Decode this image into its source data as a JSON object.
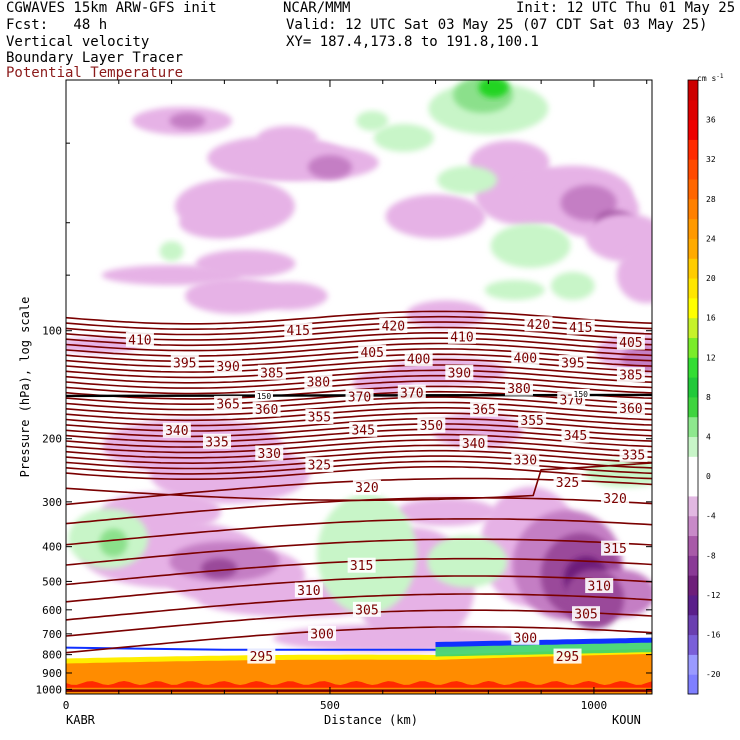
{
  "header": {
    "line1_left": "CGWAVES 15km ARW-GFS init",
    "line1_center": "NCAR/MMM",
    "line1_right": "Init: 12 UTC Thu 01 May 25",
    "line2_left": "Fcst:   48 h",
    "line2_right": "Valid: 12 UTC Sat 03 May 25 (07 CDT Sat 03 May 25)",
    "line3_left": "Vertical velocity",
    "line3_right": "XY= 187.4,173.8 to 191.8,100.1",
    "line4_left": "Boundary Layer Tracer",
    "line5_left": "Potential Temperature"
  },
  "colors": {
    "theta_contour": "#7a0000",
    "title_red": "#8b1a1a",
    "tracer_orange": "#ff8c00",
    "tracer_red": "#ff2a00",
    "tracer_yellow": "#ffee00",
    "tracer_green": "#3cd36b",
    "tracer_blue": "#1030ff",
    "up_light": "#c8f5c8",
    "up_mid": "#8be08b",
    "up_strong": "#22d422",
    "down_light": "#e6b2e6",
    "down_mid": "#c47ec4",
    "down_strong": "#9a4a9a",
    "down_darker": "#6e1f7a"
  },
  "chart_data": {
    "type": "heatmap",
    "ylabel": "Pressure (hPa), log scale",
    "xlabel": "Distance (km)",
    "x_ticks": [
      0,
      500,
      1000
    ],
    "xlim": [
      0,
      1110
    ],
    "y_ticks": [
      100,
      200,
      300,
      400,
      500,
      600,
      700,
      800,
      900,
      1000
    ],
    "ylim": [
      1030,
      20
    ],
    "y_scale": "log",
    "start_label": "KABR",
    "end_label": "KOUN",
    "colorbar": {
      "unit": "cm s",
      "unit_exponent": "-1",
      "ticks": [
        36,
        32,
        28,
        24,
        20,
        16,
        12,
        8,
        4,
        0,
        -4,
        -8,
        -12,
        -16,
        -20
      ],
      "range": [
        -22,
        40
      ],
      "segment_colors": [
        "#7f7fff",
        "#9a9aff",
        "#7a5fd8",
        "#6a3fb0",
        "#5a1f8a",
        "#6e1f7a",
        "#8a3a96",
        "#a85aa8",
        "#c88ac8",
        "#e2b8e2",
        "#ffffff",
        "#ffffff",
        "#c8f5c8",
        "#8ee88e",
        "#3fd43f",
        "#22c93a",
        "#33dd33",
        "#7aec2a",
        "#c6f22a",
        "#ffff00",
        "#ffe600",
        "#ffcc00",
        "#ffaa00",
        "#ff9900",
        "#ff8000",
        "#ff6600",
        "#ff4a00",
        "#ff2a00",
        "#ee0000",
        "#dd0000",
        "#cc0000"
      ]
    },
    "theta_contour_labels": [
      {
        "value": 410,
        "x": 140,
        "p": 106
      },
      {
        "value": 415,
        "x": 440,
        "p": 100
      },
      {
        "value": 420,
        "x": 620,
        "p": 97
      },
      {
        "value": 410,
        "x": 750,
        "p": 104
      },
      {
        "value": 420,
        "x": 895,
        "p": 96
      },
      {
        "value": 415,
        "x": 975,
        "p": 98
      },
      {
        "value": 405,
        "x": 1070,
        "p": 108
      },
      {
        "value": 395,
        "x": 225,
        "p": 123
      },
      {
        "value": 390,
        "x": 307,
        "p": 126
      },
      {
        "value": 385,
        "x": 390,
        "p": 131
      },
      {
        "value": 380,
        "x": 478,
        "p": 139
      },
      {
        "value": 405,
        "x": 580,
        "p": 115
      },
      {
        "value": 400,
        "x": 668,
        "p": 120
      },
      {
        "value": 390,
        "x": 745,
        "p": 131
      },
      {
        "value": 400,
        "x": 870,
        "p": 119
      },
      {
        "value": 395,
        "x": 960,
        "p": 123
      },
      {
        "value": 385,
        "x": 1070,
        "p": 133
      },
      {
        "value": 370,
        "x": 556,
        "p": 153
      },
      {
        "value": 370,
        "x": 655,
        "p": 149
      },
      {
        "value": 380,
        "x": 858,
        "p": 145
      },
      {
        "value": 370,
        "x": 957,
        "p": 156
      },
      {
        "value": 360,
        "x": 1070,
        "p": 165
      },
      {
        "value": 365,
        "x": 307,
        "p": 160
      },
      {
        "value": 360,
        "x": 380,
        "p": 166
      },
      {
        "value": 355,
        "x": 480,
        "p": 174
      },
      {
        "value": 365,
        "x": 792,
        "p": 166
      },
      {
        "value": 355,
        "x": 883,
        "p": 178
      },
      {
        "value": 345,
        "x": 563,
        "p": 189
      },
      {
        "value": 350,
        "x": 692,
        "p": 184
      },
      {
        "value": 345,
        "x": 965,
        "p": 196
      },
      {
        "value": 340,
        "x": 210,
        "p": 190
      },
      {
        "value": 335,
        "x": 286,
        "p": 204
      },
      {
        "value": 330,
        "x": 385,
        "p": 220
      },
      {
        "value": 325,
        "x": 480,
        "p": 237
      },
      {
        "value": 340,
        "x": 772,
        "p": 206
      },
      {
        "value": 330,
        "x": 870,
        "p": 229
      },
      {
        "value": 335,
        "x": 1075,
        "p": 222
      },
      {
        "value": 325,
        "x": 950,
        "p": 265
      },
      {
        "value": 320,
        "x": 570,
        "p": 274
      },
      {
        "value": 320,
        "x": 1040,
        "p": 294
      },
      {
        "value": 315,
        "x": 1040,
        "p": 405
      },
      {
        "value": 315,
        "x": 560,
        "p": 452
      },
      {
        "value": 310,
        "x": 460,
        "p": 530
      },
      {
        "value": 310,
        "x": 1010,
        "p": 515
      },
      {
        "value": 305,
        "x": 570,
        "p": 600
      },
      {
        "value": 305,
        "x": 985,
        "p": 617
      },
      {
        "value": 300,
        "x": 485,
        "p": 700
      },
      {
        "value": 300,
        "x": 870,
        "p": 718
      },
      {
        "value": 295,
        "x": 370,
        "p": 810
      },
      {
        "value": 295,
        "x": 950,
        "p": 810
      }
    ],
    "tropopause_labels": [
      {
        "value": 150,
        "x": 375,
        "p": 152
      },
      {
        "value": 150,
        "x": 975,
        "p": 150
      }
    ]
  }
}
